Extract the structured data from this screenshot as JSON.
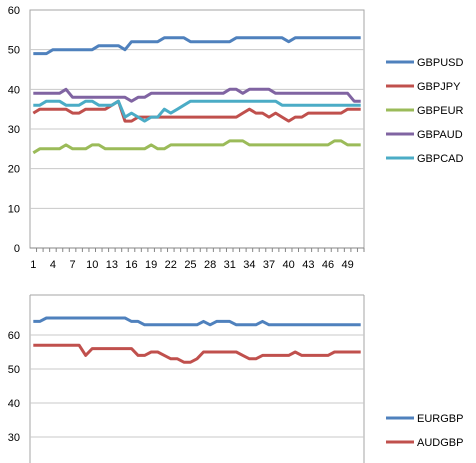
{
  "chart_data": [
    {
      "type": "line",
      "title": "",
      "xlabel": "",
      "ylabel": "",
      "ylim": [
        0,
        60
      ],
      "yticks": [
        0,
        10,
        20,
        30,
        40,
        50,
        60
      ],
      "x": [
        1,
        2,
        3,
        4,
        5,
        6,
        7,
        8,
        9,
        10,
        11,
        12,
        13,
        14,
        15,
        16,
        17,
        18,
        19,
        20,
        21,
        22,
        23,
        24,
        25,
        26,
        27,
        28,
        29,
        30,
        31,
        32,
        33,
        34,
        35,
        36,
        37,
        38,
        39,
        40,
        41,
        42,
        43,
        44,
        45,
        46,
        47,
        48,
        49,
        50,
        51
      ],
      "xticks": [
        1,
        4,
        7,
        10,
        13,
        16,
        19,
        22,
        25,
        28,
        31,
        34,
        37,
        40,
        43,
        46,
        49
      ],
      "grid": "horizontal",
      "legend_position": "right",
      "series": [
        {
          "name": "GBPUSD",
          "color": "#4F81BD",
          "values": [
            49,
            49,
            49,
            50,
            50,
            50,
            50,
            50,
            50,
            50,
            51,
            51,
            51,
            51,
            50,
            52,
            52,
            52,
            52,
            52,
            53,
            53,
            53,
            53,
            52,
            52,
            52,
            52,
            52,
            52,
            52,
            53,
            53,
            53,
            53,
            53,
            53,
            53,
            53,
            52,
            53,
            53,
            53,
            53,
            53,
            53,
            53,
            53,
            53,
            53,
            53
          ]
        },
        {
          "name": "GBPJPY",
          "color": "#C0504D",
          "values": [
            34,
            35,
            35,
            35,
            35,
            35,
            34,
            34,
            35,
            35,
            35,
            35,
            36,
            37,
            32,
            32,
            33,
            33,
            33,
            33,
            33,
            33,
            33,
            33,
            33,
            33,
            33,
            33,
            33,
            33,
            33,
            33,
            34,
            35,
            34,
            34,
            33,
            34,
            33,
            32,
            33,
            33,
            34,
            34,
            34,
            34,
            34,
            34,
            35,
            35,
            35
          ]
        },
        {
          "name": "GBPEUR",
          "color": "#9BBB59",
          "values": [
            24,
            25,
            25,
            25,
            25,
            26,
            25,
            25,
            25,
            26,
            26,
            25,
            25,
            25,
            25,
            25,
            25,
            25,
            26,
            25,
            25,
            26,
            26,
            26,
            26,
            26,
            26,
            26,
            26,
            26,
            27,
            27,
            27,
            26,
            26,
            26,
            26,
            26,
            26,
            26,
            26,
            26,
            26,
            26,
            26,
            26,
            27,
            27,
            26,
            26,
            26
          ]
        },
        {
          "name": "GBPAUD",
          "color": "#8064A2",
          "values": [
            39,
            39,
            39,
            39,
            39,
            40,
            38,
            38,
            38,
            38,
            38,
            38,
            38,
            38,
            38,
            37,
            38,
            38,
            39,
            39,
            39,
            39,
            39,
            39,
            39,
            39,
            39,
            39,
            39,
            39,
            40,
            40,
            39,
            40,
            40,
            40,
            40,
            39,
            39,
            39,
            39,
            39,
            39,
            39,
            39,
            39,
            39,
            39,
            39,
            37,
            37
          ]
        },
        {
          "name": "GBPCAD",
          "color": "#4BACC6",
          "values": [
            36,
            36,
            37,
            37,
            37,
            36,
            36,
            36,
            37,
            37,
            36,
            36,
            36,
            37,
            33,
            34,
            33,
            32,
            33,
            33,
            35,
            34,
            35,
            36,
            37,
            37,
            37,
            37,
            37,
            37,
            37,
            37,
            37,
            37,
            37,
            37,
            37,
            37,
            36,
            36,
            36,
            36,
            36,
            36,
            36,
            36,
            36,
            36,
            36,
            36,
            36
          ]
        }
      ]
    },
    {
      "type": "line",
      "title": "",
      "xlabel": "",
      "ylabel": "",
      "yticks": [
        30,
        40,
        50,
        60
      ],
      "grid": "horizontal",
      "legend_position": "right",
      "series": [
        {
          "name": "EURGBP",
          "color": "#4F81BD",
          "values": [
            64,
            64,
            65,
            65,
            65,
            65,
            65,
            65,
            65,
            65,
            65,
            65,
            65,
            65,
            65,
            64,
            64,
            63,
            63,
            63,
            63,
            63,
            63,
            63,
            63,
            63,
            64,
            63,
            64,
            64,
            64,
            63,
            63,
            63,
            63,
            64,
            63,
            63,
            63,
            63,
            63,
            63,
            63,
            63,
            63,
            63,
            63,
            63,
            63,
            63,
            63
          ]
        },
        {
          "name": "AUDGBP",
          "color": "#C0504D",
          "values": [
            57,
            57,
            57,
            57,
            57,
            57,
            57,
            57,
            54,
            56,
            56,
            56,
            56,
            56,
            56,
            56,
            54,
            54,
            55,
            55,
            54,
            53,
            53,
            52,
            52,
            53,
            55,
            55,
            55,
            55,
            55,
            55,
            54,
            53,
            53,
            54,
            54,
            54,
            54,
            54,
            55,
            54,
            54,
            54,
            54,
            54,
            55,
            55,
            55,
            55,
            55
          ]
        }
      ]
    }
  ]
}
